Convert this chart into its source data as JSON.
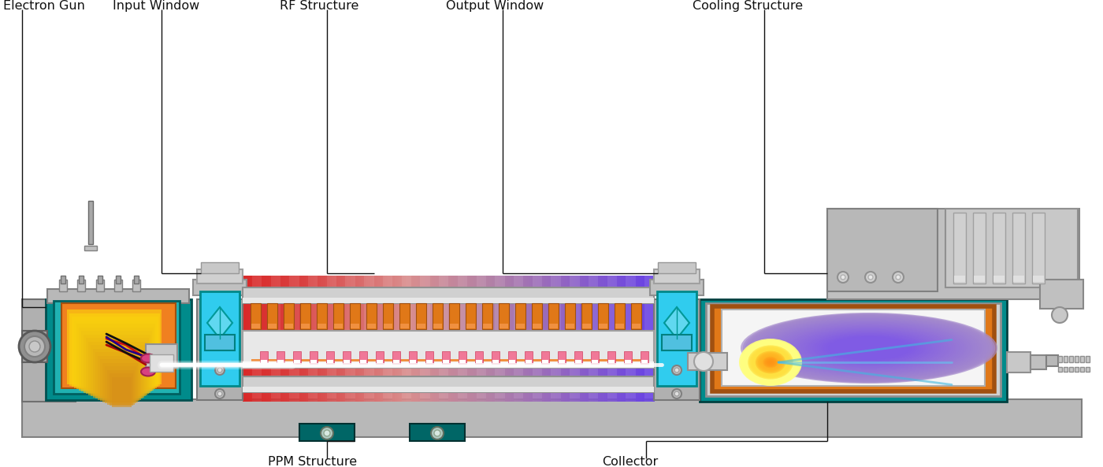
{
  "labels": {
    "electron_gun": "Electron Gun",
    "input_window": "Input Window",
    "rf_structure": "RF Structure",
    "output_window": "Output Window",
    "cooling_structure": "Cooling Structure",
    "ppm_structure": "PPM Structure",
    "collector": "Collector"
  },
  "colors": {
    "background": "#ffffff",
    "teal": "#008B8B",
    "light_teal": "#20B2B2",
    "orange": "#E8821A",
    "gray_light": "#C8C8C8",
    "gray_med": "#A0A0A0",
    "gray_dark": "#606060",
    "silver": "#D4D4D4",
    "yellow_glow": "#FFE060",
    "orange_glow": "#FF9030",
    "dark_teal": "#006666",
    "cyan_window": "#30CCEE",
    "outline": "#505050"
  }
}
